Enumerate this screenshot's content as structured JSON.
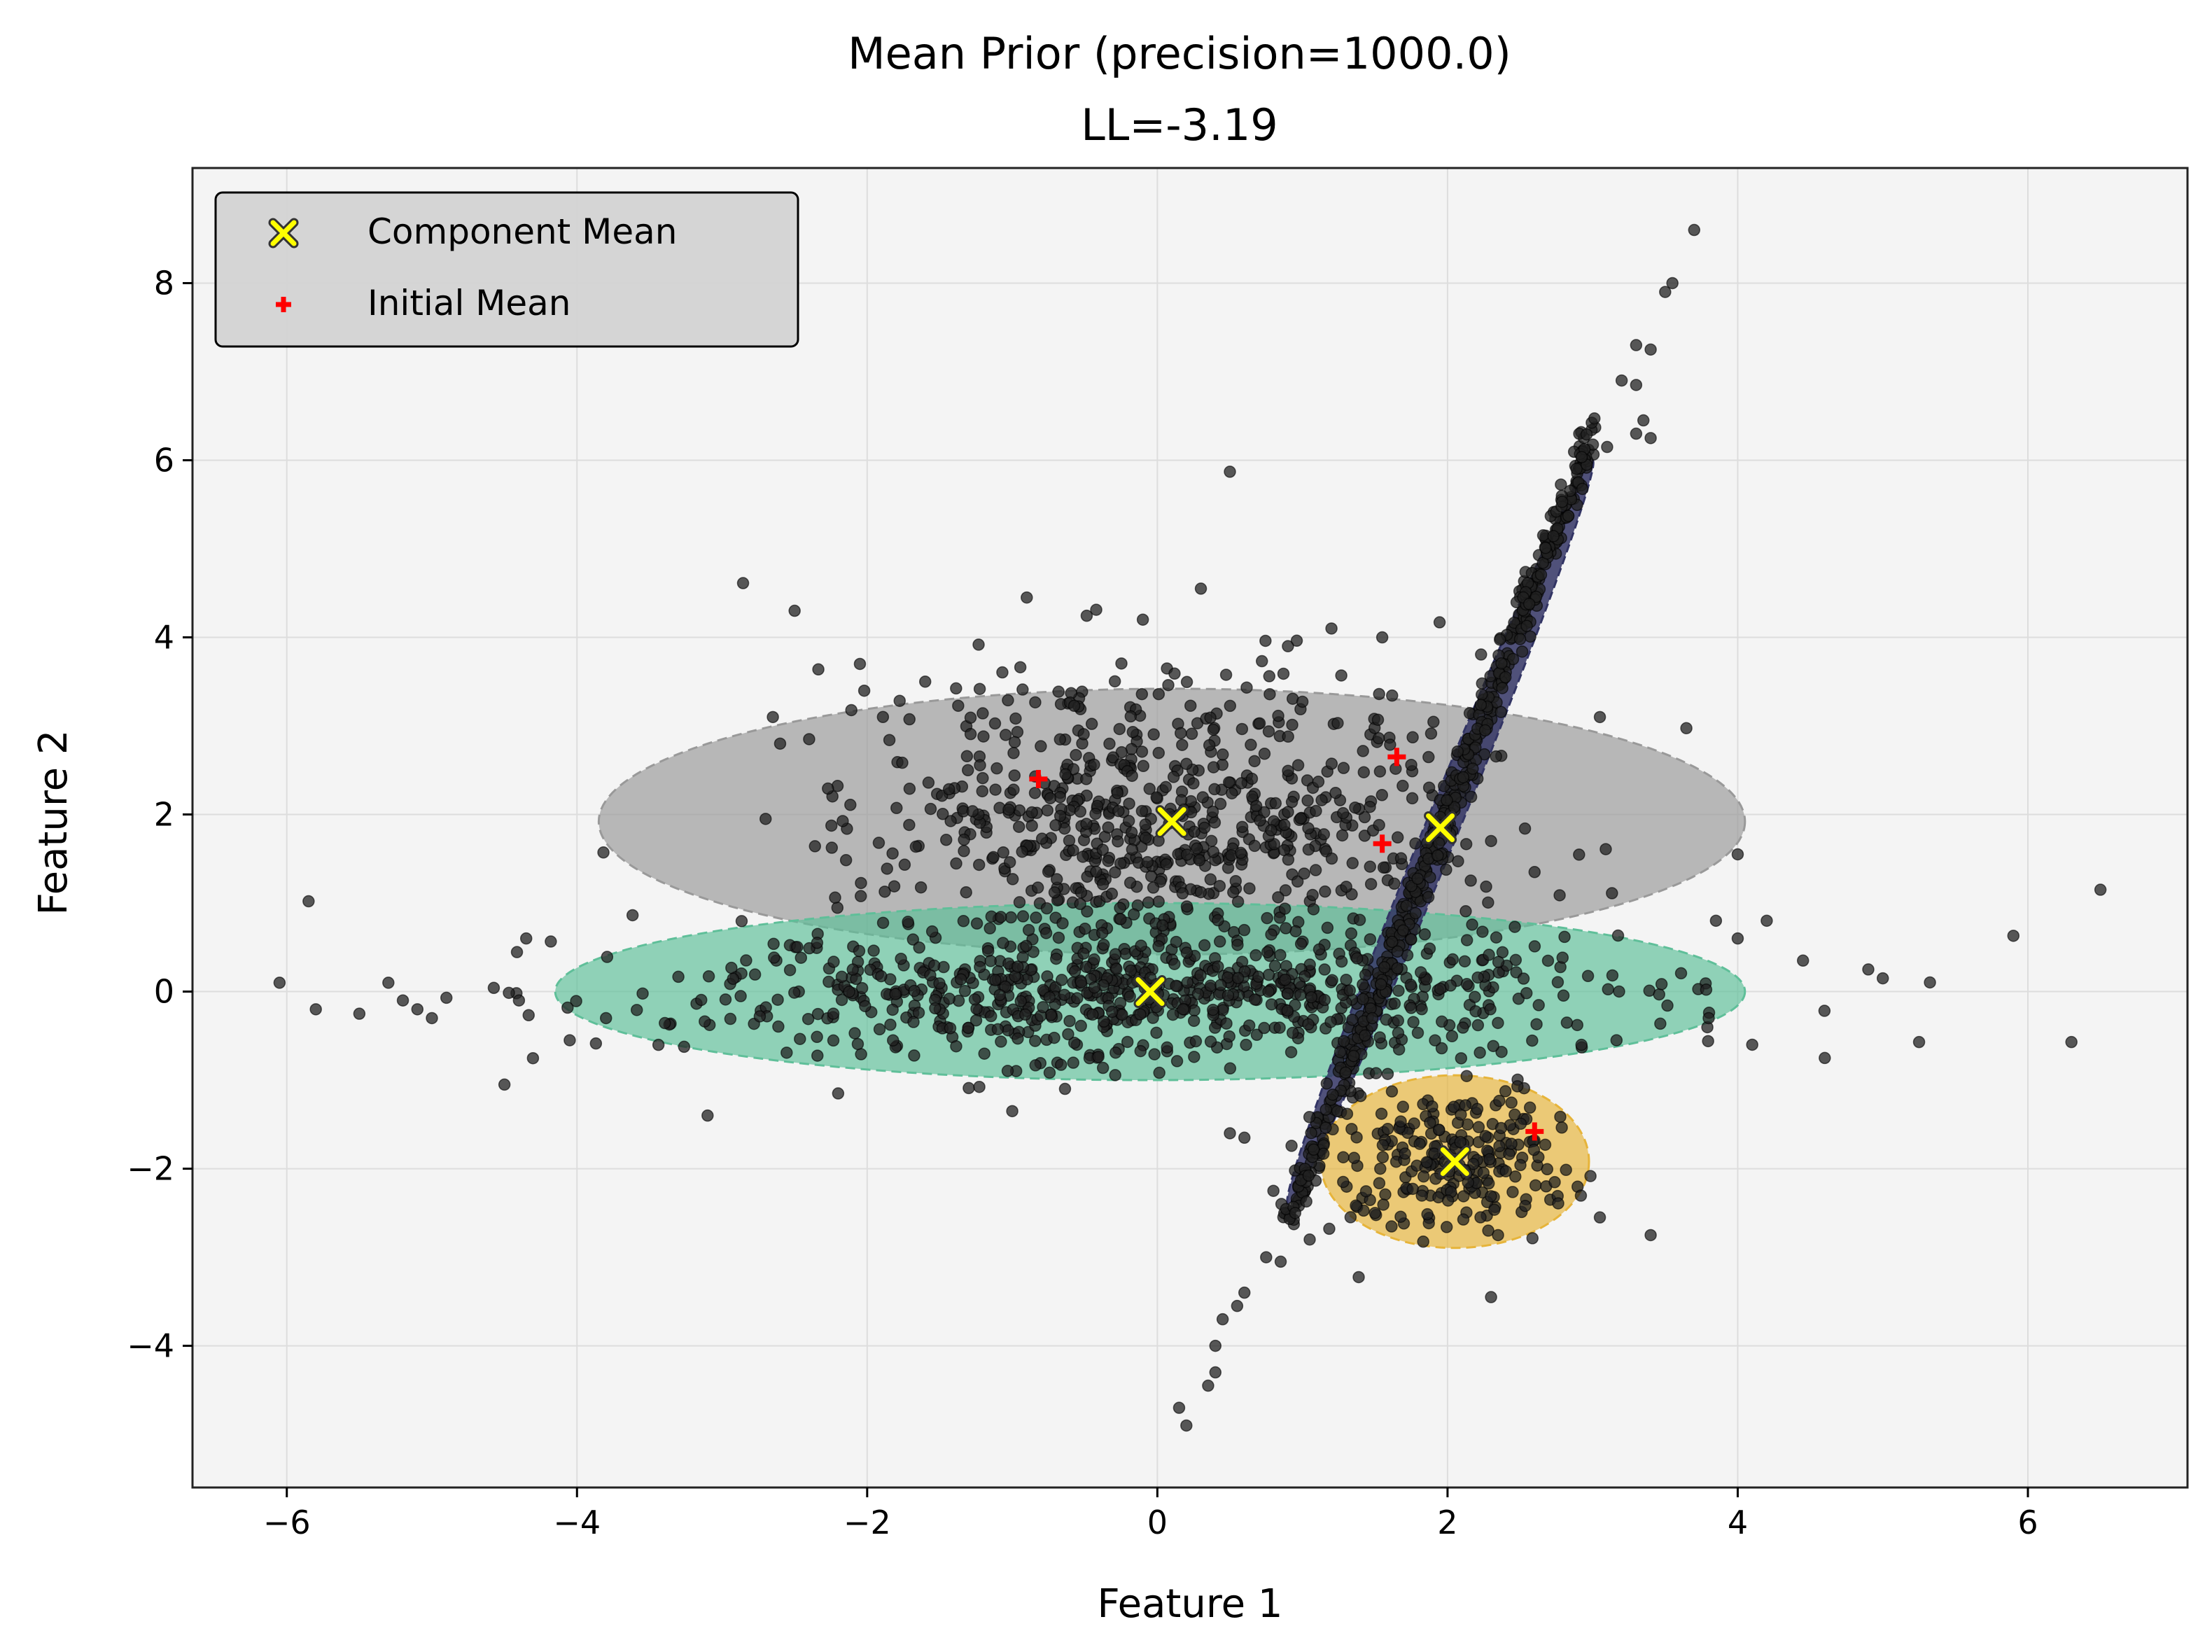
{
  "chart_data": {
    "type": "scatter",
    "title": "Mean Prior (precision=1000.0)",
    "subtitle": "LL=-3.19",
    "xlabel": "Feature 1",
    "ylabel": "Feature 2",
    "xlim": [
      -6.65,
      7.1
    ],
    "ylim": [
      -5.6,
      9.3
    ],
    "xticks": [
      -6,
      -4,
      -2,
      0,
      2,
      4,
      6
    ],
    "xtick_labels": [
      "−6",
      "−4",
      "−2",
      "0",
      "2",
      "4",
      "6"
    ],
    "yticks": [
      -4,
      -2,
      0,
      2,
      4,
      6,
      8
    ],
    "ytick_labels": [
      "−4",
      "−2",
      "0",
      "2",
      "4",
      "6",
      "8"
    ],
    "grid": true,
    "legend_position": "top-left",
    "legend": [
      {
        "label": "Component Mean",
        "marker": "x",
        "color": "#ffff00"
      },
      {
        "label": "Initial Mean",
        "marker": "plus",
        "color": "#ff0000"
      }
    ],
    "colors": {
      "plot_background": "#f4f4f4",
      "points": "#222222",
      "grid": "#dddddd",
      "legend_background": "#d3d3d3"
    },
    "components": [
      {
        "name": "",
        "mean": [
          0.1,
          1.92
        ],
        "width": 7.9,
        "height": 3.0,
        "angle_deg": 0,
        "color": "#999999"
      },
      {
        "name": "",
        "mean": [
          -0.05,
          0.0
        ],
        "width": 8.2,
        "height": 2.0,
        "angle_deg": 0,
        "color": "#5fbf99"
      },
      {
        "name": "",
        "mean": [
          1.95,
          1.85
        ],
        "width": 0.32,
        "height": 9.15,
        "angle_deg": 0,
        "color": "#323464"
      },
      {
        "name": "",
        "mean": [
          2.05,
          -1.92
        ],
        "width": 1.85,
        "height": 1.95,
        "angle_deg": 0,
        "color": "#e6b43a"
      }
    ],
    "component_means": [
      [
        0.1,
        1.92
      ],
      [
        -0.05,
        0.0
      ],
      [
        1.95,
        1.85
      ],
      [
        2.05,
        -1.92
      ]
    ],
    "initial_means": [
      [
        -0.82,
        2.4
      ],
      [
        1.65,
        2.65
      ],
      [
        1.55,
        1.67
      ],
      [
        2.6,
        -1.58
      ]
    ],
    "outlier_points": [
      [
        -6.05,
        0.1
      ],
      [
        -5.85,
        1.02
      ],
      [
        -5.8,
        -0.2
      ],
      [
        -5.5,
        -0.25
      ],
      [
        -5.3,
        0.1
      ],
      [
        -5.2,
        -0.1
      ],
      [
        -5.1,
        -0.2
      ],
      [
        -5.0,
        -0.3
      ],
      [
        -4.9,
        -0.07
      ],
      [
        -4.5,
        -1.05
      ],
      [
        -4.4,
        -0.1
      ],
      [
        -4.35,
        0.6
      ],
      [
        -2.5,
        4.3
      ],
      [
        -2.65,
        3.1
      ],
      [
        -2.6,
        2.8
      ],
      [
        -2.4,
        2.85
      ],
      [
        -2.05,
        3.7
      ],
      [
        -2.7,
        1.95
      ],
      [
        0.5,
        5.87
      ],
      [
        -0.9,
        4.45
      ],
      [
        -0.1,
        4.2
      ],
      [
        0.3,
        4.55
      ],
      [
        3.7,
        8.6
      ],
      [
        3.55,
        8.0
      ],
      [
        3.5,
        7.9
      ],
      [
        3.3,
        7.3
      ],
      [
        3.4,
        7.25
      ],
      [
        3.2,
        6.9
      ],
      [
        3.3,
        6.85
      ],
      [
        3.35,
        6.45
      ],
      [
        3.3,
        6.3
      ],
      [
        3.4,
        6.25
      ],
      [
        3.1,
        6.15
      ],
      [
        3.05,
        3.1
      ],
      [
        4.0,
        1.55
      ],
      [
        5.9,
        0.63
      ],
      [
        6.5,
        1.15
      ],
      [
        6.3,
        -0.57
      ],
      [
        5.25,
        -0.57
      ],
      [
        4.9,
        0.25
      ],
      [
        5.0,
        0.15
      ],
      [
        4.6,
        -0.75
      ],
      [
        4.45,
        0.35
      ],
      [
        4.2,
        0.8
      ],
      [
        4.0,
        0.6
      ],
      [
        3.85,
        0.8
      ],
      [
        3.4,
        -2.75
      ],
      [
        3.05,
        -2.55
      ],
      [
        2.3,
        -3.45
      ],
      [
        1.5,
        -2.5
      ],
      [
        1.05,
        -2.8
      ],
      [
        0.85,
        -3.05
      ],
      [
        0.75,
        -3.0
      ],
      [
        0.6,
        -3.4
      ],
      [
        0.55,
        -3.55
      ],
      [
        0.45,
        -3.7
      ],
      [
        0.4,
        -4.0
      ],
      [
        0.4,
        -4.3
      ],
      [
        0.35,
        -4.45
      ],
      [
        0.15,
        -4.7
      ],
      [
        0.2,
        -4.9
      ],
      [
        0.5,
        -1.6
      ],
      [
        0.6,
        -1.65
      ],
      [
        0.8,
        -2.25
      ],
      [
        0.95,
        -2.5
      ],
      [
        -3.1,
        -1.4
      ],
      [
        -2.2,
        -1.15
      ],
      [
        -1.0,
        -1.35
      ],
      [
        -4.05,
        -0.55
      ],
      [
        -3.8,
        -0.3
      ],
      [
        -1.6,
        3.5
      ],
      [
        0.9,
        3.9
      ],
      [
        1.2,
        4.1
      ],
      [
        1.55,
        4.0
      ],
      [
        2.3,
        1.7
      ],
      [
        2.6,
        1.35
      ],
      [
        3.8,
        -0.3
      ],
      [
        4.1,
        -0.6
      ]
    ]
  }
}
